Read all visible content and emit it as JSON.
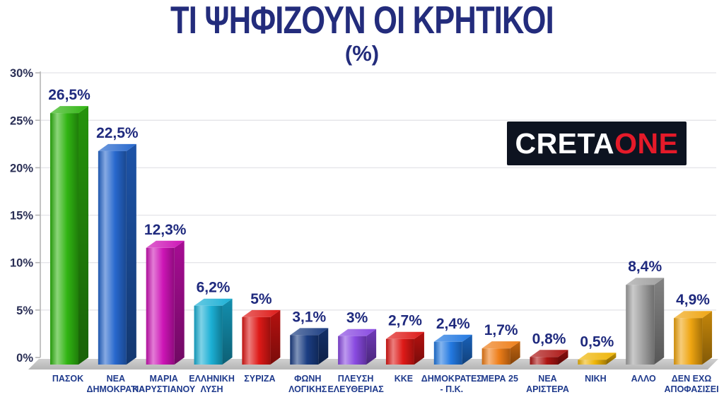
{
  "title": "ΤΙ ΨΗΦΙΖΟΥΝ ΟΙ ΚΡΗΤΙΚΟΙ",
  "subtitle": "(%)",
  "logo": {
    "text_primary": "CRETA",
    "text_accent": "ONE",
    "primary_color": "#ffffff",
    "accent_color": "#e51a29",
    "background": "#0d1320"
  },
  "colors": {
    "title": "#232c7c",
    "value_label": "#1f2a7e",
    "tick_label": "#2a2f55",
    "category_label": "#1f3a8c",
    "axis": "#b5b5b5",
    "gridline": "#e6e6ea",
    "floor_light": "#d0d0d0",
    "floor_dark": "#b5b5b5",
    "background": "#ffffff"
  },
  "chart_data": {
    "type": "bar",
    "title": "ΤΙ ΨΗΦΙΖΟΥΝ ΟΙ ΚΡΗΤΙΚΟΙ (%)",
    "xlabel": "",
    "ylabel": "%",
    "ylim": [
      0,
      30
    ],
    "ytick_labels": [
      "0%",
      "5%",
      "10%",
      "15%",
      "20%",
      "25%",
      "30%"
    ],
    "grid": true,
    "legend": "none",
    "categories": [
      "ΠΑΣΟΚ",
      "ΝΕΑ ΔΗΜΟΚΡΑΤΙΑ",
      "ΜΑΡΙΑ ΚΑΡΥΣΤΙΑΝΟΥ",
      "ΕΛΛΗΝΙΚΗ ΛΥΣΗ",
      "ΣΥΡΙΖΑ",
      "ΦΩΝΗ ΛΟΓΙΚΗΣ",
      "ΠΛΕΥΣΗ ΕΛΕΥΘΕΡΙΑΣ",
      "ΚΚΕ",
      "ΔΗΜΟΚΡΑΤΕΣ - Π.Κ.",
      "ΜΕΡΑ 25",
      "ΝΕΑ ΑΡΙΣΤΕΡΑ",
      "ΝΙΚΗ",
      "ΑΛΛΟ",
      "ΔΕΝ ΕΧΩ ΑΠΟΦΑΣΙΣΕΙ"
    ],
    "values": [
      26.5,
      22.5,
      12.3,
      6.2,
      5,
      3.1,
      3,
      2.7,
      2.4,
      1.7,
      0.8,
      0.5,
      8.4,
      4.9
    ],
    "bars": [
      {
        "label_lines": [
          "ΠΑΣΟΚ"
        ],
        "value": 26.5,
        "display": "26,5%",
        "color": "#2db30e"
      },
      {
        "label_lines": [
          "ΝΕΑ",
          "ΔΗΜΟΚΡΑΤΙΑ"
        ],
        "value": 22.5,
        "display": "22,5%",
        "color": "#2365cc"
      },
      {
        "label_lines": [
          "ΜΑΡΙΑ",
          "ΚΑΡΥΣΤΙΑΝΟΥ"
        ],
        "value": 12.3,
        "display": "12,3%",
        "color": "#cc10b4"
      },
      {
        "label_lines": [
          "ΕΛΛΗΝΙΚΗ",
          "ΛΥΣΗ"
        ],
        "value": 6.2,
        "display": "6,2%",
        "color": "#17aed4"
      },
      {
        "label_lines": [
          "ΣΥΡΙΖΑ"
        ],
        "value": 5,
        "display": "5%",
        "color": "#dd1513"
      },
      {
        "label_lines": [
          "ΦΩΝΗ",
          "ΛΟΓΙΚΗΣ"
        ],
        "value": 3.1,
        "display": "3,1%",
        "color": "#173a80"
      },
      {
        "label_lines": [
          "ΠΛΕΥΣΗ",
          "ΕΛΕΥΘΕΡΙΑΣ"
        ],
        "value": 3,
        "display": "3%",
        "color": "#8746e0"
      },
      {
        "label_lines": [
          "ΚΚΕ"
        ],
        "value": 2.7,
        "display": "2,7%",
        "color": "#dd1513"
      },
      {
        "label_lines": [
          "ΔΗΜΟΚΡΑΤΕΣ",
          "- Π.Κ."
        ],
        "value": 2.4,
        "display": "2,4%",
        "color": "#1f76e0"
      },
      {
        "label_lines": [
          "ΜΕΡΑ 25"
        ],
        "value": 1.7,
        "display": "1,7%",
        "color": "#ee7b14"
      },
      {
        "label_lines": [
          "ΝΕΑ",
          "ΑΡΙΣΤΕΡΑ"
        ],
        "value": 0.8,
        "display": "0,8%",
        "color": "#ab1210"
      },
      {
        "label_lines": [
          "ΝΙΚΗ"
        ],
        "value": 0.5,
        "display": "0,5%",
        "color": "#eeb303"
      },
      {
        "label_lines": [
          "ΑΛΛΟ"
        ],
        "value": 8.4,
        "display": "8,4%",
        "color": "#9e9e9e"
      },
      {
        "label_lines": [
          "ΔΕΝ ΕΧΩ",
          "ΑΠΟΦΑΣΙΣΕΙ"
        ],
        "value": 4.9,
        "display": "4,9%",
        "color": "#efa30c"
      }
    ]
  }
}
